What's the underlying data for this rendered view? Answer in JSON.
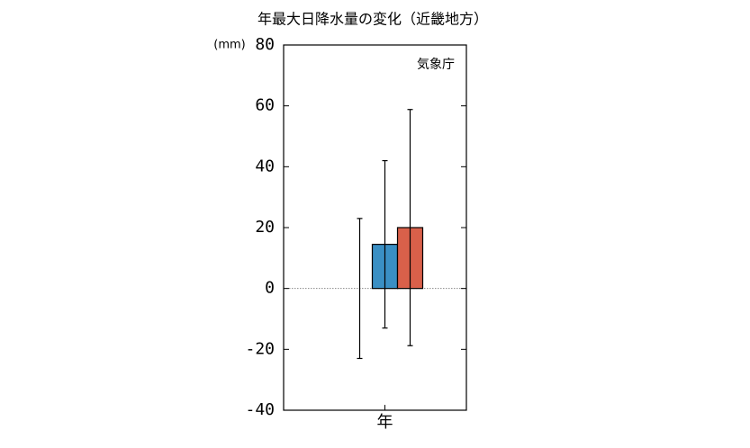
{
  "chart_data": {
    "type": "bar",
    "title": "年最大日降水量の変化（近畿地方）",
    "y_label": "(mm)",
    "annotation": "気象庁",
    "categories": [
      "年"
    ],
    "series": [
      {
        "values": [
          0
        ],
        "errors": [
          23
        ]
      },
      {
        "color": "#3a8fc4",
        "values": [
          14.5
        ],
        "errors": [
          27.5
        ]
      },
      {
        "color": "#d9604a",
        "values": [
          20
        ],
        "errors": [
          38.8
        ]
      }
    ],
    "ylim": [
      -40,
      80
    ],
    "yticks": [
      -40,
      -20,
      0,
      20,
      40,
      60,
      80
    ]
  }
}
